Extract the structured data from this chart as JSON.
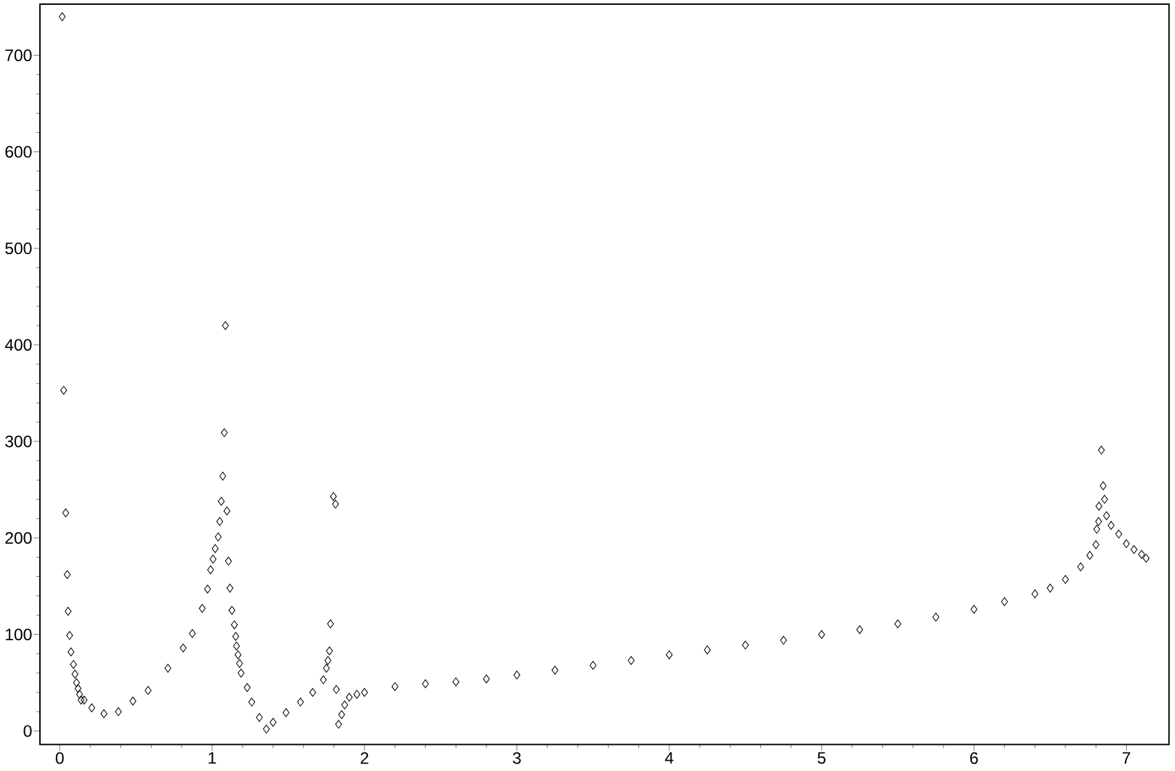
{
  "chart_data": {
    "type": "scatter",
    "marker": "diamond",
    "xlim": [
      -0.13,
      7.28
    ],
    "ylim": [
      -14,
      753
    ],
    "xticks": [
      0,
      1,
      2,
      3,
      4,
      5,
      6,
      7
    ],
    "yticks": [
      0,
      100,
      200,
      300,
      400,
      500,
      600,
      700
    ],
    "series": [
      {
        "color": "#000000",
        "x": [
          0.016,
          0.026,
          0.039,
          0.049,
          0.055,
          0.065,
          0.074,
          0.09,
          0.1,
          0.11,
          0.12,
          0.13,
          0.14,
          0.16,
          0.21,
          0.29,
          0.385,
          0.48,
          0.58,
          0.71,
          0.81,
          0.87,
          0.935,
          0.97,
          0.99,
          1.006,
          1.02,
          1.04,
          1.05,
          1.06,
          1.07,
          1.08,
          1.087,
          1.097,
          1.107,
          1.117,
          1.13,
          1.146,
          1.155,
          1.16,
          1.17,
          1.18,
          1.19,
          1.23,
          1.26,
          1.31,
          1.356,
          1.4,
          1.485,
          1.58,
          1.66,
          1.73,
          1.75,
          1.76,
          1.77,
          1.777,
          1.796,
          1.81,
          1.815,
          1.83,
          1.85,
          1.87,
          1.9,
          1.95,
          2.0,
          2.2,
          2.4,
          2.6,
          2.8,
          3.0,
          3.25,
          3.5,
          3.75,
          4.0,
          4.25,
          4.5,
          4.75,
          5.0,
          5.25,
          5.5,
          5.75,
          6.0,
          6.2,
          6.4,
          6.5,
          6.6,
          6.7,
          6.76,
          6.8,
          6.806,
          6.818,
          6.82,
          6.836,
          6.848,
          6.857,
          6.87,
          6.9,
          6.95,
          7.0,
          7.05,
          7.1,
          7.13
        ],
        "values": [
          740,
          353,
          226,
          162,
          124,
          99,
          82,
          69,
          59,
          50,
          44,
          38,
          32,
          32,
          24,
          18,
          20,
          31,
          42,
          65,
          86,
          101,
          127,
          147,
          167,
          178,
          189,
          201,
          217,
          238,
          264,
          309,
          420,
          228,
          176,
          148,
          125,
          110,
          98,
          88,
          79,
          70,
          60,
          45,
          30,
          14,
          2,
          9,
          19,
          30,
          40,
          53,
          65,
          73,
          83,
          111,
          243,
          235,
          43,
          7,
          17,
          27,
          35,
          38,
          40,
          46,
          49,
          51,
          54,
          58,
          63,
          68,
          73,
          79,
          84,
          89,
          94,
          100,
          105,
          111,
          118,
          126,
          134,
          142,
          148,
          157,
          170,
          182,
          193,
          209,
          217,
          233,
          291,
          254,
          240,
          223,
          213,
          204,
          194,
          188,
          183,
          179
        ]
      }
    ]
  }
}
